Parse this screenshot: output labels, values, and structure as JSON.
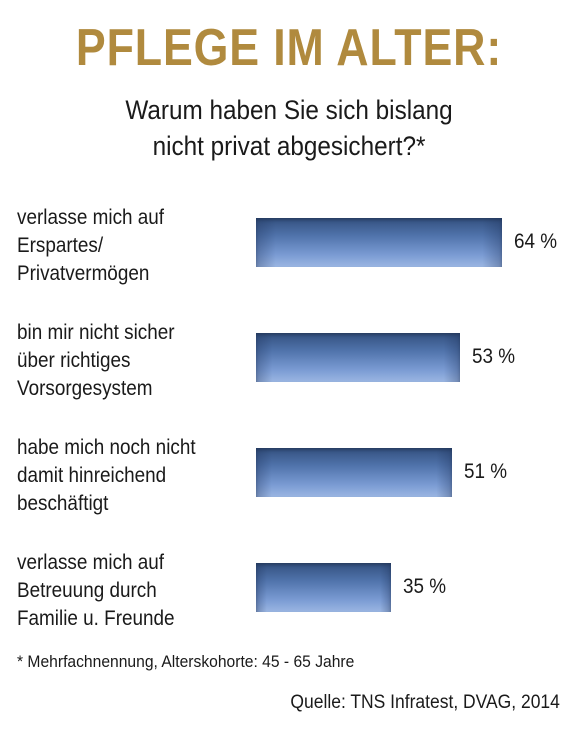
{
  "colors": {
    "title": "#b08a3e",
    "bar_dark": "#33507f",
    "bar_light": "#9bb6e2"
  },
  "title": "PFLEGE IM ALTER:",
  "subtitle": {
    "line1": "Warum haben Sie sich bislang",
    "line2": "nicht privat abgesichert?*"
  },
  "footnote": "* Mehrfachnennung, Alterskohorte: 45 - 65 Jahre",
  "source": "Quelle: TNS Infratest, DVAG, 2014",
  "chart_data": {
    "type": "bar",
    "orientation": "horizontal",
    "categories": [
      [
        "verlasse mich auf",
        "Erspartes/",
        "Privatvermögen"
      ],
      [
        "bin mir nicht sicher",
        "über richtiges",
        "Vorsorgesystem"
      ],
      [
        "habe mich noch nicht",
        "damit hinreichend",
        "beschäftigt"
      ],
      [
        "verlasse mich auf",
        "Betreuung durch",
        "Familie u. Freunde"
      ]
    ],
    "values": [
      64,
      53,
      51,
      35
    ],
    "value_labels": [
      "64 %",
      "53 %",
      "51 %",
      "35 %"
    ],
    "unit": "%",
    "xlim": [
      0,
      100
    ]
  }
}
